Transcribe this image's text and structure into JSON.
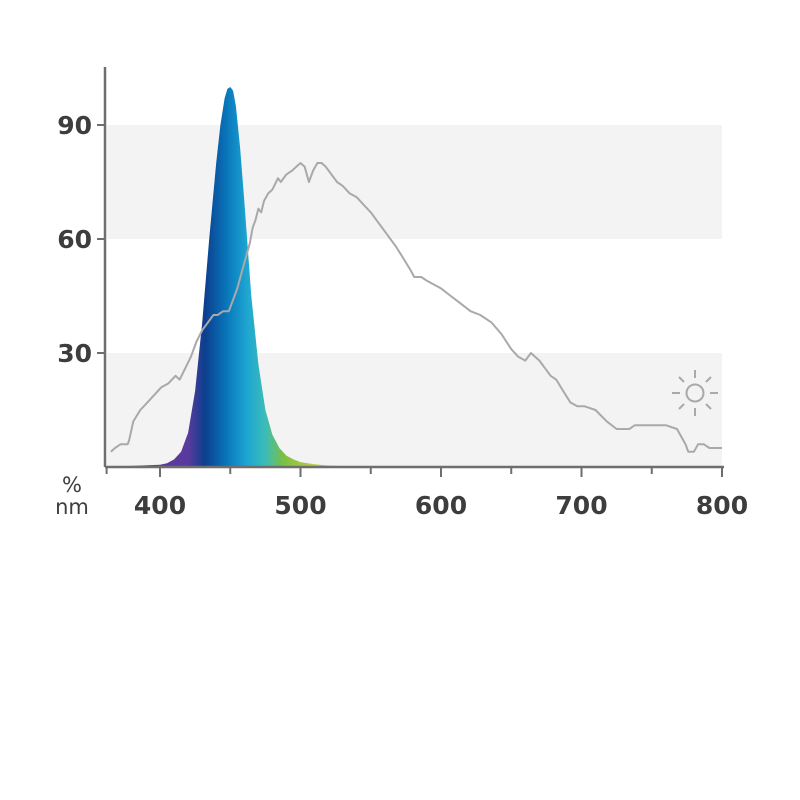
{
  "chart_data": {
    "type": "area",
    "title": "",
    "xlabel": "nm",
    "ylabel": "%",
    "xlim": [
      362,
      800
    ],
    "ylim": [
      0,
      100
    ],
    "x_ticks": [
      400,
      500,
      600,
      700,
      800
    ],
    "y_ticks": [
      30,
      60,
      90
    ],
    "grid": "alternating horizontal bands",
    "legend": "none",
    "colors": {
      "band": "#f3f3f3",
      "axis": "#6e6e6e",
      "sunlight_line": "#a9a9a9",
      "peak_blue": "#0a78bc",
      "deep_blue": "#0b3f8e",
      "violet": "#5a3a9c",
      "green": "#7cc040",
      "yellow": "#d8d24a",
      "text": "#3d3d3d"
    },
    "icons": [
      "sun-icon"
    ],
    "series": [
      {
        "kind": "filled-spectrum",
        "x": [
          362,
          380,
          400,
          405,
          410,
          415,
          420,
          425,
          430,
          435,
          440,
          443,
          446,
          448,
          450,
          452,
          454,
          457,
          460,
          465,
          470,
          475,
          480,
          485,
          490,
          495,
          500,
          510,
          520,
          530,
          540,
          560,
          580,
          600,
          650,
          700,
          800
        ],
        "y": [
          0.2,
          0.3,
          0.6,
          1,
          2,
          4,
          9,
          20,
          38,
          60,
          80,
          90,
          97,
          99.5,
          100,
          99,
          95,
          84,
          70,
          45,
          27,
          15,
          8.5,
          5,
          3,
          2,
          1.3,
          0.7,
          0.4,
          0.25,
          0.15,
          0.08,
          0.05,
          0.03,
          0.02,
          0.01,
          0.01
        ]
      },
      {
        "kind": "line",
        "x": [
          365,
          368,
          372,
          377,
          378,
          381,
          386,
          391,
          396,
          401,
          406,
          411,
          414,
          418,
          422,
          426,
          430,
          434,
          438,
          441,
          445,
          449,
          452,
          455,
          458,
          461,
          464,
          466,
          468,
          470,
          472,
          474,
          477,
          480,
          484,
          486,
          490,
          494,
          497,
          500,
          503,
          506,
          509,
          512,
          515,
          518,
          522,
          526,
          530,
          535,
          540,
          545,
          550,
          556,
          562,
          568,
          573,
          578,
          581,
          583,
          586,
          590,
          595,
          600,
          607,
          614,
          621,
          628,
          636,
          643,
          650,
          655,
          660,
          664,
          667,
          670,
          674,
          678,
          682,
          687,
          692,
          697,
          699,
          702,
          710,
          718,
          725,
          731,
          734,
          738,
          745,
          752,
          760,
          768,
          774,
          776,
          778,
          780,
          783,
          787,
          791,
          796,
          800
        ],
        "y": [
          4,
          5,
          6,
          6,
          7,
          12,
          15,
          17,
          19,
          21,
          22,
          24,
          23,
          26,
          29,
          33,
          36,
          38,
          40,
          40,
          41,
          41,
          44,
          47,
          51,
          55,
          59,
          63,
          65,
          68,
          67,
          70,
          72,
          73,
          76,
          75,
          77,
          78,
          79,
          80,
          79,
          75,
          78,
          80,
          80,
          79,
          77,
          75,
          74,
          72,
          71,
          69,
          67,
          64,
          61,
          58,
          55,
          52,
          50,
          50,
          50,
          49,
          48,
          47,
          45,
          43,
          41,
          40,
          38,
          35,
          31,
          29,
          28,
          30,
          29,
          28,
          26,
          24,
          23,
          20,
          17,
          16,
          16,
          16,
          15,
          12,
          10,
          10,
          10,
          11,
          11,
          11,
          11,
          10,
          6,
          4,
          4,
          4,
          6,
          6,
          5,
          5,
          5
        ]
      }
    ]
  }
}
